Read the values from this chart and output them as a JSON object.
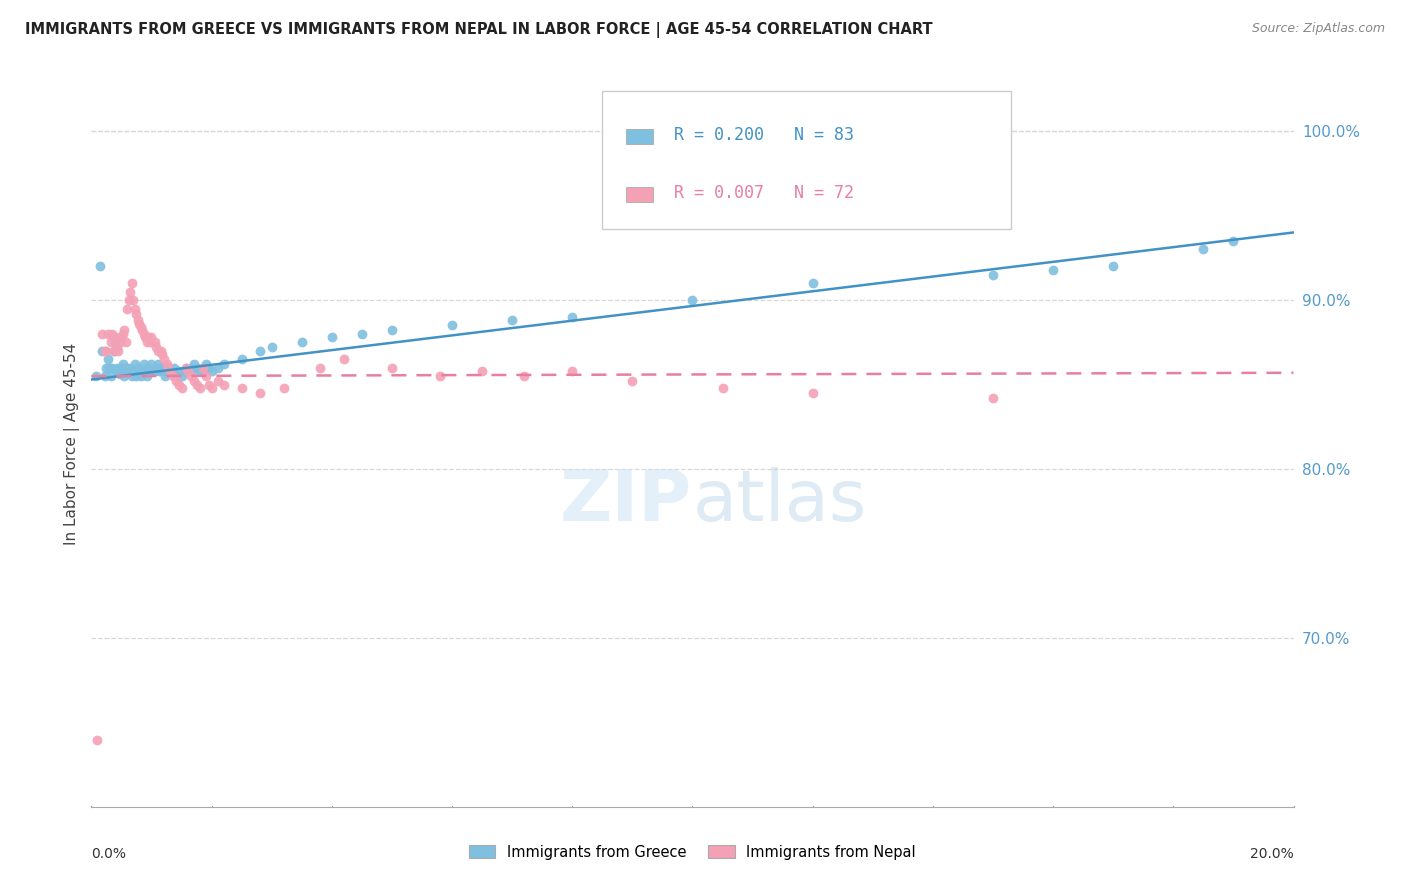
{
  "title": "IMMIGRANTS FROM GREECE VS IMMIGRANTS FROM NEPAL IN LABOR FORCE | AGE 45-54 CORRELATION CHART",
  "source": "Source: ZipAtlas.com",
  "ylabel": "In Labor Force | Age 45-54",
  "right_yticks": [
    70.0,
    80.0,
    90.0,
    100.0
  ],
  "background_color": "#ffffff",
  "grid_color": "#d8d8d8",
  "legend_R1": "R = 0.200",
  "legend_N1": "N = 83",
  "legend_R2": "R = 0.007",
  "legend_N2": "N = 72",
  "color_greece": "#7fbfdf",
  "color_nepal": "#f4a0b5",
  "line_color_greece": "#4292c6",
  "line_color_nepal": "#e87fa0",
  "watermark": "ZIPatlas",
  "greece_x": [
    0.0008,
    0.0015,
    0.0018,
    0.0022,
    0.0025,
    0.0028,
    0.003,
    0.0032,
    0.0035,
    0.0038,
    0.004,
    0.0042,
    0.0045,
    0.0048,
    0.005,
    0.0052,
    0.0055,
    0.0058,
    0.006,
    0.0062,
    0.0065,
    0.0068,
    0.007,
    0.0072,
    0.0075,
    0.0078,
    0.008,
    0.0082,
    0.0085,
    0.0088,
    0.009,
    0.0092,
    0.0095,
    0.0098,
    0.01,
    0.0105,
    0.0108,
    0.011,
    0.0112,
    0.0115,
    0.0118,
    0.012,
    0.0122,
    0.0125,
    0.0128,
    0.013,
    0.0135,
    0.0138,
    0.014,
    0.0145,
    0.015,
    0.0155,
    0.0158,
    0.016,
    0.0165,
    0.0168,
    0.017,
    0.0175,
    0.018,
    0.0185,
    0.0188,
    0.019,
    0.0195,
    0.02,
    0.021,
    0.022,
    0.025,
    0.028,
    0.03,
    0.035,
    0.04,
    0.045,
    0.05,
    0.06,
    0.07,
    0.08,
    0.1,
    0.12,
    0.15,
    0.16,
    0.17,
    0.185,
    0.19
  ],
  "greece_y": [
    0.855,
    0.92,
    0.87,
    0.855,
    0.86,
    0.865,
    0.86,
    0.855,
    0.86,
    0.87,
    0.875,
    0.86,
    0.858,
    0.856,
    0.86,
    0.862,
    0.855,
    0.858,
    0.86,
    0.858,
    0.86,
    0.855,
    0.858,
    0.862,
    0.855,
    0.858,
    0.86,
    0.855,
    0.858,
    0.862,
    0.858,
    0.855,
    0.86,
    0.858,
    0.862,
    0.858,
    0.86,
    0.862,
    0.858,
    0.86,
    0.858,
    0.86,
    0.855,
    0.858,
    0.86,
    0.858,
    0.858,
    0.86,
    0.855,
    0.858,
    0.855,
    0.858,
    0.86,
    0.858,
    0.86,
    0.858,
    0.862,
    0.86,
    0.858,
    0.86,
    0.858,
    0.862,
    0.86,
    0.858,
    0.86,
    0.862,
    0.865,
    0.87,
    0.872,
    0.875,
    0.878,
    0.88,
    0.882,
    0.885,
    0.888,
    0.89,
    0.9,
    0.91,
    0.915,
    0.918,
    0.92,
    0.93,
    0.935
  ],
  "nepal_x": [
    0.001,
    0.0018,
    0.0022,
    0.0025,
    0.0028,
    0.0032,
    0.0035,
    0.0038,
    0.004,
    0.0042,
    0.0045,
    0.0048,
    0.005,
    0.0052,
    0.0055,
    0.0058,
    0.006,
    0.0062,
    0.0065,
    0.0068,
    0.007,
    0.0072,
    0.0075,
    0.0078,
    0.008,
    0.0082,
    0.0085,
    0.0088,
    0.009,
    0.0092,
    0.0095,
    0.0098,
    0.01,
    0.0105,
    0.0108,
    0.011,
    0.0115,
    0.0118,
    0.012,
    0.0125,
    0.0128,
    0.013,
    0.0135,
    0.014,
    0.0145,
    0.015,
    0.0158,
    0.016,
    0.0165,
    0.017,
    0.0175,
    0.018,
    0.0185,
    0.019,
    0.0195,
    0.02,
    0.021,
    0.022,
    0.025,
    0.028,
    0.032,
    0.038,
    0.042,
    0.05,
    0.058,
    0.065,
    0.072,
    0.08,
    0.09,
    0.105,
    0.12,
    0.15
  ],
  "nepal_y": [
    0.64,
    0.88,
    0.87,
    0.87,
    0.88,
    0.875,
    0.88,
    0.87,
    0.878,
    0.872,
    0.87,
    0.875,
    0.878,
    0.88,
    0.882,
    0.875,
    0.895,
    0.9,
    0.905,
    0.91,
    0.9,
    0.895,
    0.892,
    0.888,
    0.886,
    0.884,
    0.882,
    0.88,
    0.878,
    0.875,
    0.878,
    0.875,
    0.878,
    0.875,
    0.872,
    0.87,
    0.87,
    0.868,
    0.865,
    0.862,
    0.86,
    0.858,
    0.855,
    0.852,
    0.85,
    0.848,
    0.86,
    0.858,
    0.855,
    0.852,
    0.85,
    0.848,
    0.86,
    0.855,
    0.85,
    0.848,
    0.852,
    0.85,
    0.848,
    0.845,
    0.848,
    0.86,
    0.865,
    0.86,
    0.855,
    0.858,
    0.855,
    0.858,
    0.852,
    0.848,
    0.845,
    0.842
  ],
  "xlim": [
    0.0,
    0.2
  ],
  "ylim": [
    0.6,
    1.03
  ],
  "xlim_pct": [
    0.0,
    20.0
  ]
}
